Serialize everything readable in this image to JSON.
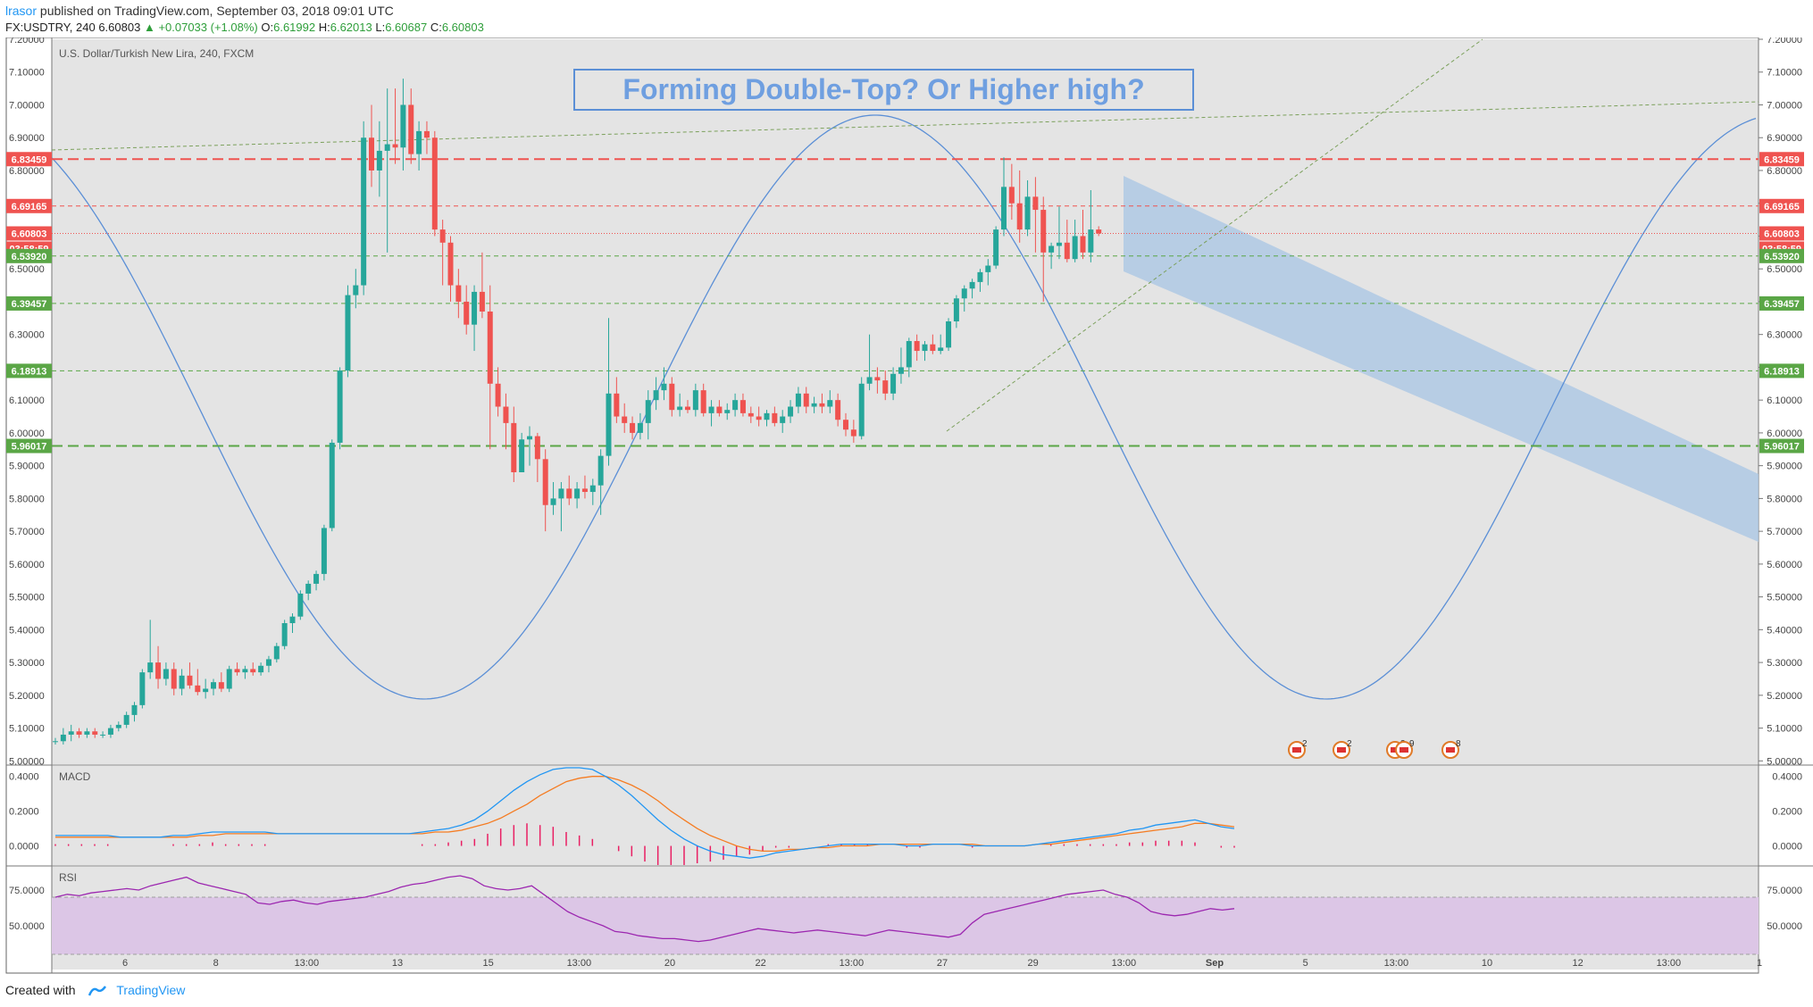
{
  "header": {
    "author": "lrasor",
    "published_text": " published on TradingView.com, September 03, 2018 09:01 UTC",
    "symbol": "FX:USDTRY, 240",
    "last": "6.60803",
    "change": "+0.07033 (+1.08%)",
    "o_label": "O:",
    "o_value": "6.61992",
    "h_label": "H:",
    "h_value": "6.62013",
    "l_label": "L:",
    "l_value": "6.60687",
    "c_label": "C:",
    "c_value": "6.60803"
  },
  "footer": {
    "created_with": "Created with",
    "brand": "TradingView"
  },
  "colors": {
    "up": "#26a69a",
    "down": "#ef5350",
    "grid_bg": "#e4e4e4",
    "sine": "#5b8fd6",
    "channel": "#a8c6e4",
    "macd": "#2196f3",
    "signal": "#f57c22",
    "hist": "#e91e63",
    "rsi": "#9c27b0",
    "rsi_band": "#dcc6e6"
  },
  "chart_data": {
    "type": "candlestick",
    "title": "U.S. Dollar/Turkish New Lira, 240, FXCM",
    "annotation": "Forming Double-Top? Or Higher high?",
    "y_range": [
      4.99,
      7.2
    ],
    "y_ticks": [
      "7.20000",
      "7.10000",
      "7.00000",
      "6.90000",
      "6.80000",
      "6.70000",
      "6.60000",
      "6.50000",
      "6.40000",
      "6.30000",
      "6.20000",
      "6.10000",
      "6.00000",
      "5.90000",
      "5.80000",
      "5.70000",
      "5.60000",
      "5.50000",
      "5.40000",
      "5.30000",
      "5.20000",
      "5.10000",
      "5.00000"
    ],
    "x_ticks": [
      "6",
      "8",
      "13:00",
      "13",
      "15",
      "13:00",
      "20",
      "22",
      "13:00",
      "27",
      "29",
      "13:00",
      "Sep",
      "5",
      "13:00",
      "10",
      "12",
      "13:00",
      "1"
    ],
    "price_levels": [
      {
        "label": "6.83459",
        "value": 6.83459,
        "color": "#ef5350",
        "style": "long-dash"
      },
      {
        "label": "6.69165",
        "value": 6.69165,
        "color": "#ef5350",
        "style": "dash"
      },
      {
        "label": "6.60803",
        "value": 6.60803,
        "color": "#ef5350",
        "style": "dot",
        "sub_label": "03:58:59"
      },
      {
        "label": "6.53920",
        "value": 6.5392,
        "color": "#5aa646",
        "style": "dash"
      },
      {
        "label": "6.39457",
        "value": 6.39457,
        "color": "#5aa646",
        "style": "dash"
      },
      {
        "label": "6.18913",
        "value": 6.18913,
        "color": "#5aa646",
        "style": "dash"
      },
      {
        "label": "5.96017",
        "value": 5.96017,
        "color": "#5aa646",
        "style": "long-dash"
      }
    ],
    "candles_ohlc": [
      [
        5.06,
        5.07,
        5.05,
        5.06
      ],
      [
        5.06,
        5.1,
        5.05,
        5.08
      ],
      [
        5.08,
        5.11,
        5.06,
        5.09
      ],
      [
        5.09,
        5.1,
        5.07,
        5.08
      ],
      [
        5.08,
        5.1,
        5.07,
        5.09
      ],
      [
        5.09,
        5.1,
        5.07,
        5.08
      ],
      [
        5.08,
        5.09,
        5.07,
        5.08
      ],
      [
        5.08,
        5.11,
        5.07,
        5.1
      ],
      [
        5.1,
        5.12,
        5.09,
        5.11
      ],
      [
        5.11,
        5.15,
        5.1,
        5.14
      ],
      [
        5.14,
        5.18,
        5.12,
        5.17
      ],
      [
        5.17,
        5.28,
        5.16,
        5.27
      ],
      [
        5.27,
        5.43,
        5.25,
        5.3
      ],
      [
        5.3,
        5.35,
        5.22,
        5.25
      ],
      [
        5.25,
        5.3,
        5.23,
        5.28
      ],
      [
        5.28,
        5.3,
        5.2,
        5.22
      ],
      [
        5.22,
        5.28,
        5.2,
        5.26
      ],
      [
        5.26,
        5.3,
        5.22,
        5.23
      ],
      [
        5.23,
        5.28,
        5.2,
        5.21
      ],
      [
        5.21,
        5.25,
        5.19,
        5.22
      ],
      [
        5.22,
        5.25,
        5.2,
        5.24
      ],
      [
        5.24,
        5.27,
        5.21,
        5.22
      ],
      [
        5.22,
        5.29,
        5.21,
        5.28
      ],
      [
        5.28,
        5.3,
        5.26,
        5.27
      ],
      [
        5.27,
        5.29,
        5.25,
        5.28
      ],
      [
        5.28,
        5.3,
        5.26,
        5.27
      ],
      [
        5.27,
        5.3,
        5.26,
        5.29
      ],
      [
        5.29,
        5.32,
        5.27,
        5.31
      ],
      [
        5.31,
        5.36,
        5.3,
        5.35
      ],
      [
        5.35,
        5.43,
        5.34,
        5.42
      ],
      [
        5.42,
        5.45,
        5.39,
        5.44
      ],
      [
        5.44,
        5.52,
        5.43,
        5.51
      ],
      [
        5.51,
        5.55,
        5.49,
        5.54
      ],
      [
        5.54,
        5.58,
        5.52,
        5.57
      ],
      [
        5.57,
        5.72,
        5.55,
        5.71
      ],
      [
        5.71,
        5.98,
        5.7,
        5.97
      ],
      [
        5.97,
        6.2,
        5.95,
        6.19
      ],
      [
        6.19,
        6.45,
        6.17,
        6.42
      ],
      [
        6.42,
        6.5,
        6.38,
        6.45
      ],
      [
        6.45,
        6.95,
        6.42,
        6.9
      ],
      [
        6.9,
        7.0,
        6.75,
        6.8
      ],
      [
        6.8,
        6.95,
        6.72,
        6.86
      ],
      [
        6.86,
        7.05,
        6.55,
        6.88
      ],
      [
        6.88,
        7.05,
        6.82,
        6.87
      ],
      [
        6.87,
        7.08,
        6.8,
        7.0
      ],
      [
        7.0,
        7.05,
        6.82,
        6.85
      ],
      [
        6.85,
        6.95,
        6.8,
        6.92
      ],
      [
        6.92,
        6.95,
        6.85,
        6.9
      ],
      [
        6.9,
        6.92,
        6.6,
        6.62
      ],
      [
        6.62,
        6.65,
        6.45,
        6.58
      ],
      [
        6.58,
        6.6,
        6.4,
        6.45
      ],
      [
        6.45,
        6.5,
        6.35,
        6.4
      ],
      [
        6.4,
        6.45,
        6.3,
        6.33
      ],
      [
        6.33,
        6.45,
        6.25,
        6.43
      ],
      [
        6.43,
        6.55,
        6.35,
        6.37
      ],
      [
        6.37,
        6.45,
        5.95,
        6.15
      ],
      [
        6.15,
        6.2,
        6.05,
        6.08
      ],
      [
        6.08,
        6.12,
        5.95,
        6.03
      ],
      [
        6.03,
        6.08,
        5.85,
        5.88
      ],
      [
        5.88,
        6.0,
        5.88,
        5.98
      ],
      [
        5.98,
        6.02,
        5.9,
        5.99
      ],
      [
        5.99,
        6.0,
        5.85,
        5.92
      ],
      [
        5.92,
        5.95,
        5.7,
        5.78
      ],
      [
        5.78,
        5.85,
        5.75,
        5.8
      ],
      [
        5.8,
        5.85,
        5.7,
        5.83
      ],
      [
        5.83,
        5.87,
        5.78,
        5.8
      ],
      [
        5.8,
        5.85,
        5.77,
        5.83
      ],
      [
        5.83,
        5.87,
        5.8,
        5.82
      ],
      [
        5.82,
        5.86,
        5.78,
        5.84
      ],
      [
        5.84,
        5.95,
        5.75,
        5.93
      ],
      [
        5.93,
        6.35,
        5.9,
        6.12
      ],
      [
        6.12,
        6.17,
        6.03,
        6.05
      ],
      [
        6.05,
        6.09,
        6.0,
        6.03
      ],
      [
        6.03,
        6.05,
        5.98,
        6.0
      ],
      [
        6.0,
        6.06,
        5.98,
        6.03
      ],
      [
        6.03,
        6.13,
        5.98,
        6.1
      ],
      [
        6.1,
        6.17,
        6.07,
        6.13
      ],
      [
        6.13,
        6.2,
        6.1,
        6.15
      ],
      [
        6.15,
        6.17,
        6.05,
        6.07
      ],
      [
        6.07,
        6.12,
        6.05,
        6.08
      ],
      [
        6.08,
        6.1,
        6.06,
        6.07
      ],
      [
        6.07,
        6.15,
        6.05,
        6.13
      ],
      [
        6.13,
        6.15,
        6.05,
        6.06
      ],
      [
        6.06,
        6.1,
        6.02,
        6.08
      ],
      [
        6.08,
        6.1,
        6.05,
        6.06
      ],
      [
        6.06,
        6.09,
        6.04,
        6.07
      ],
      [
        6.07,
        6.12,
        6.05,
        6.1
      ],
      [
        6.1,
        6.12,
        6.05,
        6.06
      ],
      [
        6.06,
        6.08,
        6.03,
        6.05
      ],
      [
        6.05,
        6.08,
        6.02,
        6.04
      ],
      [
        6.04,
        6.07,
        6.02,
        6.06
      ],
      [
        6.06,
        6.08,
        6.02,
        6.03
      ],
      [
        6.03,
        6.07,
        6.0,
        6.05
      ],
      [
        6.05,
        6.1,
        6.03,
        6.08
      ],
      [
        6.08,
        6.14,
        6.06,
        6.12
      ],
      [
        6.12,
        6.14,
        6.06,
        6.08
      ],
      [
        6.08,
        6.11,
        6.06,
        6.09
      ],
      [
        6.09,
        6.12,
        6.06,
        6.08
      ],
      [
        6.08,
        6.13,
        6.06,
        6.1
      ],
      [
        6.1,
        6.12,
        6.02,
        6.04
      ],
      [
        6.04,
        6.06,
        5.99,
        6.01
      ],
      [
        6.01,
        6.04,
        5.97,
        5.99
      ],
      [
        5.99,
        6.17,
        5.98,
        6.15
      ],
      [
        6.15,
        6.3,
        6.13,
        6.17
      ],
      [
        6.17,
        6.2,
        6.12,
        6.16
      ],
      [
        6.16,
        6.19,
        6.1,
        6.12
      ],
      [
        6.12,
        6.2,
        6.1,
        6.18
      ],
      [
        6.18,
        6.26,
        6.15,
        6.2
      ],
      [
        6.2,
        6.29,
        6.17,
        6.28
      ],
      [
        6.28,
        6.3,
        6.22,
        6.25
      ],
      [
        6.25,
        6.28,
        6.22,
        6.27
      ],
      [
        6.27,
        6.3,
        6.24,
        6.25
      ],
      [
        6.25,
        6.3,
        6.24,
        6.26
      ],
      [
        6.26,
        6.35,
        6.25,
        6.34
      ],
      [
        6.34,
        6.42,
        6.32,
        6.41
      ],
      [
        6.41,
        6.45,
        6.37,
        6.44
      ],
      [
        6.44,
        6.47,
        6.41,
        6.46
      ],
      [
        6.46,
        6.5,
        6.43,
        6.49
      ],
      [
        6.49,
        6.53,
        6.45,
        6.51
      ],
      [
        6.51,
        6.63,
        6.5,
        6.62
      ],
      [
        6.62,
        6.84,
        6.6,
        6.75
      ],
      [
        6.75,
        6.82,
        6.65,
        6.7
      ],
      [
        6.7,
        6.8,
        6.58,
        6.62
      ],
      [
        6.62,
        6.77,
        6.6,
        6.72
      ],
      [
        6.72,
        6.78,
        6.55,
        6.68
      ],
      [
        6.68,
        6.72,
        6.4,
        6.55
      ],
      [
        6.55,
        6.58,
        6.5,
        6.57
      ],
      [
        6.57,
        6.69,
        6.53,
        6.58
      ],
      [
        6.58,
        6.65,
        6.52,
        6.53
      ],
      [
        6.53,
        6.65,
        6.52,
        6.6
      ],
      [
        6.6,
        6.68,
        6.53,
        6.55
      ],
      [
        6.55,
        6.74,
        6.52,
        6.62
      ],
      [
        6.62,
        6.63,
        6.6,
        6.608
      ]
    ],
    "macd": {
      "name": "MACD",
      "y_ticks": [
        "0.4000",
        "0.2000",
        "0.0000"
      ],
      "y_range": [
        -0.1,
        0.45
      ],
      "macd_values": [
        0.06,
        0.06,
        0.06,
        0.06,
        0.06,
        0.05,
        0.05,
        0.05,
        0.05,
        0.06,
        0.06,
        0.07,
        0.08,
        0.08,
        0.08,
        0.08,
        0.08,
        0.07,
        0.07,
        0.07,
        0.07,
        0.07,
        0.07,
        0.07,
        0.07,
        0.07,
        0.07,
        0.07,
        0.08,
        0.09,
        0.1,
        0.12,
        0.15,
        0.2,
        0.26,
        0.32,
        0.37,
        0.41,
        0.44,
        0.45,
        0.45,
        0.44,
        0.4,
        0.35,
        0.29,
        0.22,
        0.15,
        0.09,
        0.04,
        0.0,
        -0.03,
        -0.05,
        -0.06,
        -0.07,
        -0.06,
        -0.04,
        -0.03,
        -0.02,
        -0.01,
        0.0,
        0.01,
        0.01,
        0.01,
        0.01,
        0.01,
        0.0,
        0.0,
        0.01,
        0.01,
        0.01,
        0.0,
        0.0,
        0.0,
        0.0,
        0.0,
        0.01,
        0.02,
        0.03,
        0.04,
        0.05,
        0.06,
        0.07,
        0.09,
        0.1,
        0.12,
        0.13,
        0.14,
        0.15,
        0.13,
        0.11,
        0.1
      ],
      "signal_values": [
        0.05,
        0.05,
        0.05,
        0.05,
        0.05,
        0.05,
        0.05,
        0.05,
        0.05,
        0.05,
        0.05,
        0.06,
        0.06,
        0.07,
        0.07,
        0.07,
        0.07,
        0.07,
        0.07,
        0.07,
        0.07,
        0.07,
        0.07,
        0.07,
        0.07,
        0.07,
        0.07,
        0.07,
        0.07,
        0.08,
        0.08,
        0.09,
        0.11,
        0.13,
        0.16,
        0.2,
        0.24,
        0.29,
        0.33,
        0.37,
        0.39,
        0.4,
        0.4,
        0.38,
        0.35,
        0.31,
        0.26,
        0.2,
        0.15,
        0.1,
        0.06,
        0.03,
        0.0,
        -0.02,
        -0.03,
        -0.03,
        -0.02,
        -0.02,
        -0.01,
        -0.01,
        0.0,
        0.0,
        0.0,
        0.01,
        0.01,
        0.01,
        0.01,
        0.01,
        0.01,
        0.01,
        0.01,
        0.0,
        0.0,
        0.0,
        0.0,
        0.01,
        0.01,
        0.02,
        0.03,
        0.04,
        0.05,
        0.06,
        0.07,
        0.08,
        0.09,
        0.1,
        0.11,
        0.13,
        0.13,
        0.12,
        0.11
      ],
      "hist_values": [
        0.01,
        0.01,
        0.01,
        0.01,
        0.01,
        0.0,
        0.0,
        0.0,
        0.0,
        0.01,
        0.01,
        0.01,
        0.02,
        0.01,
        0.01,
        0.01,
        0.01,
        0.0,
        0.0,
        0.0,
        0.0,
        0.0,
        0.0,
        0.0,
        0.0,
        0.0,
        0.0,
        0.0,
        0.01,
        0.01,
        0.02,
        0.03,
        0.04,
        0.07,
        0.1,
        0.12,
        0.13,
        0.12,
        0.11,
        0.08,
        0.06,
        0.04,
        0.0,
        -0.03,
        -0.06,
        -0.09,
        -0.11,
        -0.11,
        -0.11,
        -0.1,
        -0.09,
        -0.08,
        -0.06,
        -0.05,
        -0.03,
        -0.01,
        -0.01,
        0.0,
        0.0,
        0.01,
        0.01,
        0.01,
        0.01,
        0.0,
        0.0,
        -0.01,
        -0.01,
        0.0,
        0.0,
        0.0,
        -0.01,
        0.0,
        0.0,
        0.0,
        0.0,
        0.0,
        0.01,
        0.01,
        0.01,
        0.01,
        0.01,
        0.01,
        0.02,
        0.02,
        0.03,
        0.03,
        0.03,
        0.02,
        0.0,
        -0.01,
        -0.01
      ]
    },
    "rsi": {
      "name": "RSI",
      "y_ticks": [
        "75.0000",
        "50.0000"
      ],
      "y_range": [
        20,
        90
      ],
      "band": [
        30,
        70
      ],
      "values": [
        70,
        72,
        71,
        73,
        74,
        75,
        76,
        75,
        78,
        80,
        82,
        84,
        80,
        78,
        76,
        74,
        72,
        66,
        65,
        67,
        68,
        66,
        65,
        67,
        68,
        69,
        70,
        72,
        74,
        77,
        79,
        80,
        82,
        84,
        85,
        83,
        78,
        76,
        75,
        76,
        78,
        72,
        66,
        60,
        56,
        53,
        50,
        46,
        45,
        43,
        42,
        41,
        41,
        40,
        39,
        40,
        42,
        44,
        46,
        48,
        47,
        46,
        45,
        46,
        47,
        46,
        45,
        44,
        43,
        45,
        47,
        46,
        45,
        44,
        43,
        42,
        44,
        52,
        58,
        60,
        62,
        64,
        66,
        68,
        70,
        72,
        73,
        74,
        75,
        72,
        70,
        66,
        60,
        58,
        57,
        58,
        60,
        62,
        61,
        62
      ]
    },
    "event_markers": [
      "2",
      "2",
      "3",
      "9",
      "8"
    ]
  }
}
